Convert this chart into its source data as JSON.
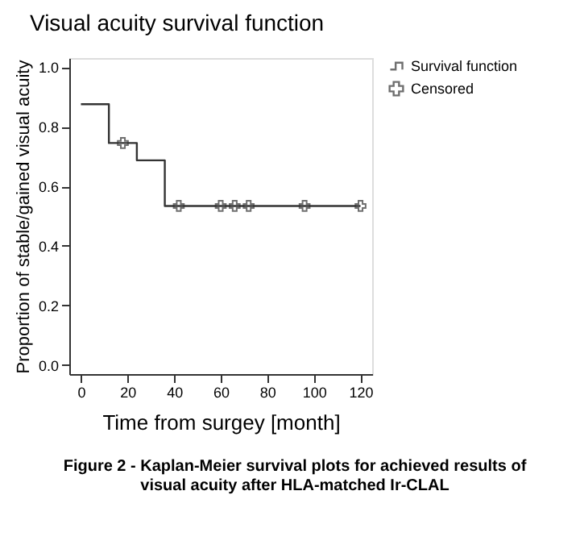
{
  "chart_data": {
    "type": "step",
    "title": "Visual acuity survival function",
    "xlabel": "Time from surgey [month]",
    "ylabel": "Proportion of stable/gained visual acuity",
    "series": [
      {
        "name": "Survival function",
        "color": "#333333",
        "x": [
          0,
          12,
          24,
          36,
          120
        ],
        "values": [
          0.875,
          0.745,
          0.687,
          0.534,
          0.534
        ]
      },
      {
        "name": "Censored",
        "type": "scatter",
        "marker": "cross",
        "color": "#333333",
        "x": [
          18,
          42,
          60,
          66,
          72,
          96,
          120
        ],
        "values": [
          0.745,
          0.534,
          0.534,
          0.534,
          0.534,
          0.534,
          0.534
        ]
      }
    ],
    "xlim": [
      -5,
      125
    ],
    "xticks": [
      0,
      20,
      40,
      60,
      80,
      100,
      120
    ],
    "ylim": [
      -0.03,
      1.03
    ],
    "yticks": [
      {
        "value": 0,
        "label": "0.0"
      },
      {
        "value": 0.2,
        "label": "0.2"
      },
      {
        "value": 0.4,
        "label": "0.4"
      },
      {
        "value": 0.6,
        "label": "0.6"
      },
      {
        "value": 0.8,
        "label": "0.8"
      },
      {
        "value": 1,
        "label": "1.0"
      }
    ],
    "grid": false,
    "legend": "top right",
    "annotations": [
      "Figure 2 - Kaplan-Meier survival plots for achieved results of visual acuity after HLA-matched Ir-CLAL"
    ]
  }
}
